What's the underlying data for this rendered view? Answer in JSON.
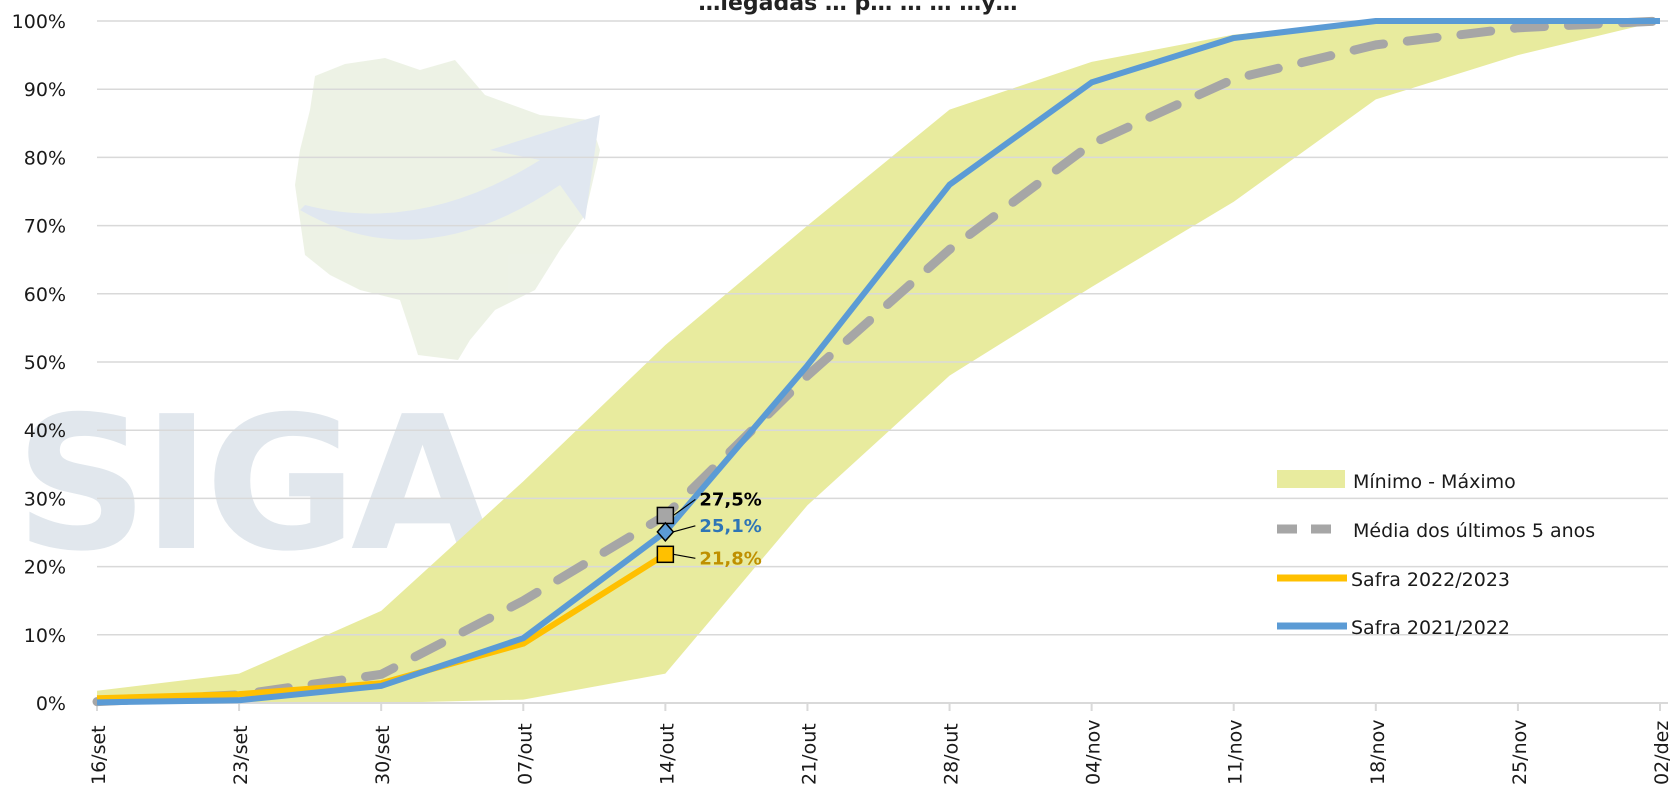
{
  "chart_data": {
    "type": "line",
    "title": "…iegadas … p… … … …y…",
    "categories": [
      "16/set",
      "23/set",
      "30/set",
      "07/out",
      "14/out",
      "21/out",
      "28/out",
      "04/nov",
      "11/nov",
      "18/nov",
      "25/nov",
      "02/dez"
    ],
    "ylim": [
      0,
      100
    ],
    "yticks": [
      "0%",
      "10%",
      "20%",
      "30%",
      "40%",
      "50%",
      "60%",
      "70%",
      "80%",
      "90%",
      "100%"
    ],
    "band": {
      "name": "Mínimo - Máximo",
      "min": [
        0,
        0,
        0,
        0.5,
        4.3,
        29,
        48,
        61,
        73.5,
        88.5,
        95,
        100
      ],
      "max": [
        1.8,
        4.3,
        13.5,
        32.5,
        52.5,
        70,
        87,
        94,
        98,
        100,
        100,
        100
      ]
    },
    "series": [
      {
        "name": "Média dos últimos 5 anos",
        "values": [
          0.2,
          1.2,
          4.2,
          15,
          27.5,
          48,
          66.5,
          82,
          91.5,
          96.5,
          99,
          100
        ]
      },
      {
        "name": "Safra 2022/2023",
        "values": [
          0.7,
          1.3,
          2.9,
          8.7,
          21.8,
          null,
          null,
          null,
          null,
          null,
          null,
          null
        ]
      },
      {
        "name": "Safra 2021/2022",
        "values": [
          0.1,
          0.4,
          2.5,
          9.5,
          25.1,
          49.5,
          76,
          91,
          97.5,
          100,
          100,
          100
        ]
      }
    ],
    "annotations": [
      {
        "series": 0,
        "index": 4,
        "text": "27,5%"
      },
      {
        "series": 2,
        "index": 4,
        "text": "25,1%"
      },
      {
        "series": 1,
        "index": 4,
        "text": "21,8%"
      }
    ],
    "colors": {
      "band": "#e8eb9e",
      "media": "#a6a6a6",
      "safra_2022_2023": "#ffc000",
      "safra_2021_2022": "#5b9bd5",
      "label_media": "#000000",
      "label_2021": "#2e75b6",
      "label_2022": "#bf9000",
      "gridline": "#d9d9d9"
    },
    "grid": true,
    "legend_position": "right",
    "watermark": "SIGA"
  }
}
